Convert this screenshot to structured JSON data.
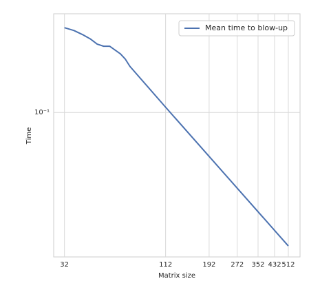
{
  "chart_data": {
    "type": "line",
    "xlabel": "Matrix size",
    "ylabel": "Time",
    "x": [
      32,
      36,
      40,
      44,
      48,
      52,
      56,
      60,
      64,
      68,
      72,
      112,
      512
    ],
    "series": [
      {
        "name": "Mean time to blow-up",
        "color": "#4c72b0",
        "values": [
          0.257,
          0.249,
          0.238,
          0.227,
          0.214,
          0.209,
          0.209,
          0.2,
          0.192,
          0.181,
          0.167,
          0.106,
          0.0226
        ]
      }
    ],
    "xscale": "log",
    "yscale": "log",
    "xlim": [
      28,
      592
    ],
    "ylim": [
      0.02,
      0.3
    ],
    "xticks": [
      32,
      112,
      192,
      272,
      352,
      432,
      512
    ],
    "yticks": [
      {
        "value": 0.1,
        "label": "10⁻¹"
      }
    ],
    "grid": true,
    "legend": "upper right"
  }
}
